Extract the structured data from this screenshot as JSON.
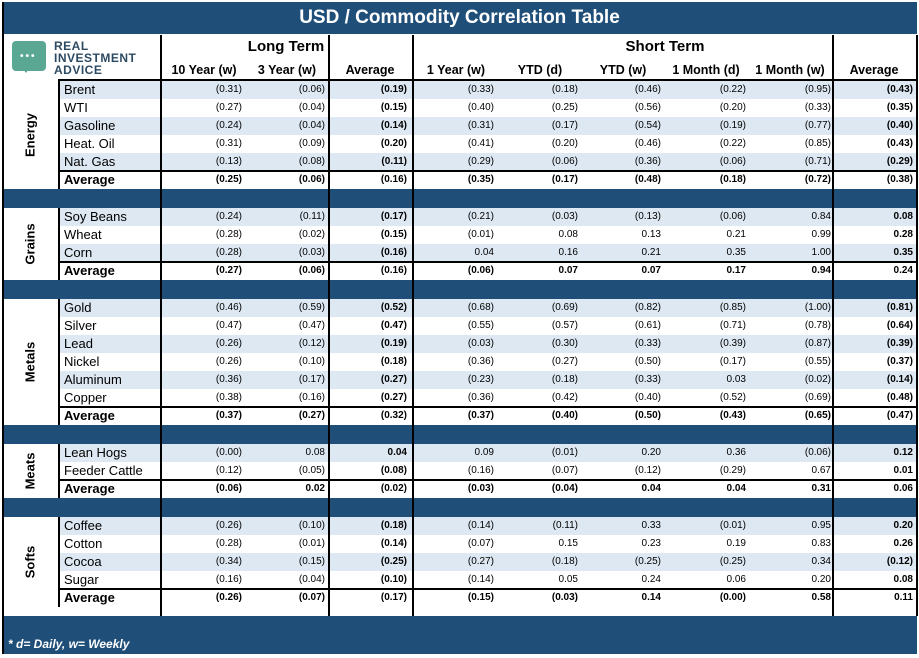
{
  "title": "USD / Commodity Correlation Table",
  "logo": {
    "line1": "REAL",
    "line2": "INVESTMENT",
    "line3": "ADVICE"
  },
  "groups": {
    "long": "Long Term",
    "short": "Short Term"
  },
  "columns": [
    "10 Year (w)",
    "3 Year (w)",
    "Average",
    "1 Year (w)",
    "YTD (d)",
    "YTD (w)",
    "1 Month (d)",
    "1 Month (w)",
    "Average"
  ],
  "footnote": "* d= Daily, w= Weekly",
  "colors": {
    "header": "#1f4e79",
    "row_shade": "#dde8f3"
  },
  "sectors": [
    {
      "name": "Energy",
      "rows": [
        {
          "name": "Brent",
          "v": [
            "(0.31)",
            "(0.06)",
            "(0.19)",
            "(0.33)",
            "(0.18)",
            "(0.46)",
            "(0.22)",
            "(0.95)",
            "(0.43)"
          ]
        },
        {
          "name": "WTI",
          "v": [
            "(0.27)",
            "(0.04)",
            "(0.15)",
            "(0.40)",
            "(0.25)",
            "(0.56)",
            "(0.20)",
            "(0.33)",
            "(0.35)"
          ]
        },
        {
          "name": "Gasoline",
          "v": [
            "(0.24)",
            "(0.04)",
            "(0.14)",
            "(0.31)",
            "(0.17)",
            "(0.54)",
            "(0.19)",
            "(0.77)",
            "(0.40)"
          ]
        },
        {
          "name": "Heat. Oil",
          "v": [
            "(0.31)",
            "(0.09)",
            "(0.20)",
            "(0.41)",
            "(0.20)",
            "(0.46)",
            "(0.22)",
            "(0.85)",
            "(0.43)"
          ]
        },
        {
          "name": "Nat. Gas",
          "v": [
            "(0.13)",
            "(0.08)",
            "(0.11)",
            "(0.29)",
            "(0.06)",
            "(0.36)",
            "(0.06)",
            "(0.71)",
            "(0.29)"
          ]
        },
        {
          "name": "Average",
          "avg": true,
          "v": [
            "(0.25)",
            "(0.06)",
            "(0.16)",
            "(0.35)",
            "(0.17)",
            "(0.48)",
            "(0.18)",
            "(0.72)",
            "(0.38)"
          ]
        }
      ]
    },
    {
      "name": "Grains",
      "rows": [
        {
          "name": "Soy Beans",
          "v": [
            "(0.24)",
            "(0.11)",
            "(0.17)",
            "(0.21)",
            "(0.03)",
            "(0.13)",
            "(0.06)",
            "0.84",
            "0.08"
          ]
        },
        {
          "name": "Wheat",
          "v": [
            "(0.28)",
            "(0.02)",
            "(0.15)",
            "(0.01)",
            "0.08",
            "0.13",
            "0.21",
            "0.99",
            "0.28"
          ]
        },
        {
          "name": "Corn",
          "v": [
            "(0.28)",
            "(0.03)",
            "(0.16)",
            "0.04",
            "0.16",
            "0.21",
            "0.35",
            "1.00",
            "0.35"
          ]
        },
        {
          "name": "Average",
          "avg": true,
          "v": [
            "(0.27)",
            "(0.06)",
            "(0.16)",
            "(0.06)",
            "0.07",
            "0.07",
            "0.17",
            "0.94",
            "0.24"
          ]
        }
      ]
    },
    {
      "name": "Metals",
      "rows": [
        {
          "name": "Gold",
          "v": [
            "(0.46)",
            "(0.59)",
            "(0.52)",
            "(0.68)",
            "(0.69)",
            "(0.82)",
            "(0.85)",
            "(1.00)",
            "(0.81)"
          ]
        },
        {
          "name": "Silver",
          "v": [
            "(0.47)",
            "(0.47)",
            "(0.47)",
            "(0.55)",
            "(0.57)",
            "(0.61)",
            "(0.71)",
            "(0.78)",
            "(0.64)"
          ]
        },
        {
          "name": "Lead",
          "v": [
            "(0.26)",
            "(0.12)",
            "(0.19)",
            "(0.03)",
            "(0.30)",
            "(0.33)",
            "(0.39)",
            "(0.87)",
            "(0.39)"
          ]
        },
        {
          "name": "Nickel",
          "v": [
            "(0.26)",
            "(0.10)",
            "(0.18)",
            "(0.36)",
            "(0.27)",
            "(0.50)",
            "(0.17)",
            "(0.55)",
            "(0.37)"
          ]
        },
        {
          "name": "Aluminum",
          "v": [
            "(0.36)",
            "(0.17)",
            "(0.27)",
            "(0.23)",
            "(0.18)",
            "(0.33)",
            "0.03",
            "(0.02)",
            "(0.14)"
          ]
        },
        {
          "name": "Copper",
          "v": [
            "(0.38)",
            "(0.16)",
            "(0.27)",
            "(0.36)",
            "(0.42)",
            "(0.40)",
            "(0.52)",
            "(0.69)",
            "(0.48)"
          ]
        },
        {
          "name": "Average",
          "avg": true,
          "v": [
            "(0.37)",
            "(0.27)",
            "(0.32)",
            "(0.37)",
            "(0.40)",
            "(0.50)",
            "(0.43)",
            "(0.65)",
            "(0.47)"
          ]
        }
      ]
    },
    {
      "name": "Meats",
      "rows": [
        {
          "name": "Lean Hogs",
          "v": [
            "(0.00)",
            "0.08",
            "0.04",
            "0.09",
            "(0.01)",
            "0.20",
            "0.36",
            "(0.06)",
            "0.12"
          ]
        },
        {
          "name": "Feeder Cattle",
          "v": [
            "(0.12)",
            "(0.05)",
            "(0.08)",
            "(0.16)",
            "(0.07)",
            "(0.12)",
            "(0.29)",
            "0.67",
            "0.01"
          ]
        },
        {
          "name": "Average",
          "avg": true,
          "v": [
            "(0.06)",
            "0.02",
            "(0.02)",
            "(0.03)",
            "(0.04)",
            "0.04",
            "0.04",
            "0.31",
            "0.06"
          ]
        }
      ]
    },
    {
      "name": "Softs",
      "rows": [
        {
          "name": "Coffee",
          "v": [
            "(0.26)",
            "(0.10)",
            "(0.18)",
            "(0.14)",
            "(0.11)",
            "0.33",
            "(0.01)",
            "0.95",
            "0.20"
          ]
        },
        {
          "name": "Cotton",
          "v": [
            "(0.28)",
            "(0.01)",
            "(0.14)",
            "(0.07)",
            "0.15",
            "0.23",
            "0.19",
            "0.83",
            "0.26"
          ]
        },
        {
          "name": "Cocoa",
          "v": [
            "(0.34)",
            "(0.15)",
            "(0.25)",
            "(0.27)",
            "(0.18)",
            "(0.25)",
            "(0.25)",
            "0.34",
            "(0.12)"
          ]
        },
        {
          "name": "Sugar",
          "v": [
            "(0.16)",
            "(0.04)",
            "(0.10)",
            "(0.14)",
            "0.05",
            "0.24",
            "0.06",
            "0.20",
            "0.08"
          ]
        },
        {
          "name": "Average",
          "avg": true,
          "v": [
            "(0.26)",
            "(0.07)",
            "(0.17)",
            "(0.15)",
            "(0.03)",
            "0.14",
            "(0.00)",
            "0.58",
            "0.11"
          ]
        }
      ]
    }
  ]
}
